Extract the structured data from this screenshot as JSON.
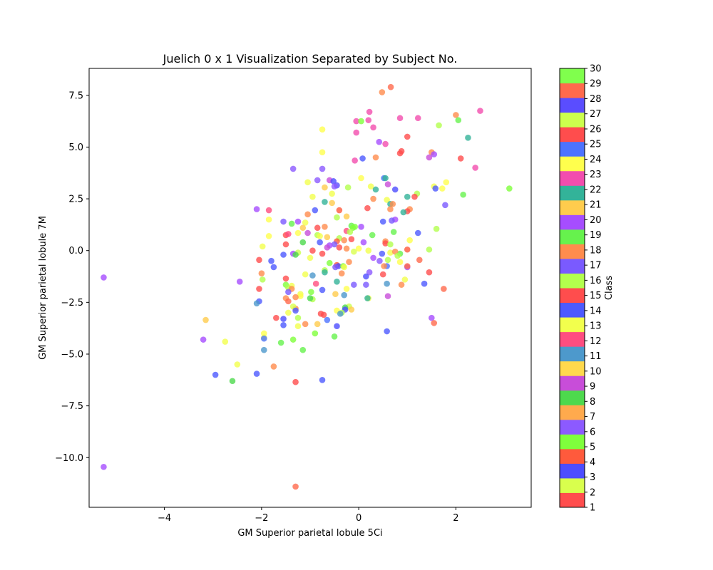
{
  "chart_data": {
    "type": "scatter",
    "title": "Juelich 0 x 1 Visualization Separated by Subject No.",
    "xlabel": "GM Superior parietal lobule 5Ci",
    "ylabel": "GM Superior parietal lobule 7M",
    "xlim": [
      -5.55,
      3.55
    ],
    "ylim": [
      -12.4,
      8.8
    ],
    "xticks": [
      -4,
      -2,
      0,
      2
    ],
    "xtick_labels": [
      "−4",
      "−2",
      "0",
      "2"
    ],
    "yticks": [
      -10.0,
      -7.5,
      -5.0,
      -2.5,
      0.0,
      2.5,
      5.0,
      7.5
    ],
    "ytick_labels": [
      "−10.0",
      "−7.5",
      "−5.0",
      "−2.5",
      "0.0",
      "2.5",
      "5.0",
      "7.5"
    ],
    "grid": false,
    "colorbar": {
      "label": "Class",
      "min": 1,
      "max": 30,
      "ticks": [
        "1",
        "2",
        "3",
        "4",
        "5",
        "6",
        "7",
        "8",
        "9",
        "10",
        "11",
        "12",
        "13",
        "14",
        "15",
        "16",
        "17",
        "18",
        "19",
        "20",
        "21",
        "22",
        "23",
        "24",
        "25",
        "26",
        "27",
        "28",
        "29",
        "30"
      ],
      "colors": [
        "#ff4d4d",
        "#d9ff4d",
        "#4d4dff",
        "#ff5a3c",
        "#7fff3c",
        "#8c5aff",
        "#ffaa4d",
        "#4dd94d",
        "#c84dd9",
        "#ffd94d",
        "#4d99cc",
        "#ff4d80",
        "#f2ff4d",
        "#4d5aff",
        "#ff4d4d",
        "#b3ff4d",
        "#7a5aff",
        "#ff8c4d",
        "#66f24d",
        "#a64dff",
        "#ffcc4d",
        "#33b399",
        "#f24dae",
        "#ffff4d",
        "#4d73ff",
        "#ff4d4d",
        "#ccff4d",
        "#5a4dff",
        "#ff6a4d",
        "#80ff4d"
      ]
    },
    "points": [
      {
        "x": 0.66,
        "y": 7.9,
        "c": 29
      },
      {
        "x": 0.48,
        "y": 7.65,
        "c": 18
      },
      {
        "x": 2.5,
        "y": 6.75,
        "c": 23
      },
      {
        "x": 0.22,
        "y": 6.7,
        "c": 23
      },
      {
        "x": 2.0,
        "y": 6.55,
        "c": 18
      },
      {
        "x": 0.85,
        "y": 6.4,
        "c": 23
      },
      {
        "x": 1.22,
        "y": 6.4,
        "c": 23
      },
      {
        "x": 2.05,
        "y": 6.3,
        "c": 19
      },
      {
        "x": -0.05,
        "y": 6.25,
        "c": 23
      },
      {
        "x": 0.05,
        "y": 6.25,
        "c": 5
      },
      {
        "x": 0.2,
        "y": 6.3,
        "c": 23
      },
      {
        "x": 1.65,
        "y": 6.05,
        "c": 16
      },
      {
        "x": 0.3,
        "y": 5.95,
        "c": 23
      },
      {
        "x": -0.75,
        "y": 5.85,
        "c": 24
      },
      {
        "x": -0.05,
        "y": 5.7,
        "c": 23
      },
      {
        "x": 1.0,
        "y": 5.5,
        "c": 15
      },
      {
        "x": 2.25,
        "y": 5.45,
        "c": 22
      },
      {
        "x": 0.42,
        "y": 5.25,
        "c": 20
      },
      {
        "x": 0.55,
        "y": 5.15,
        "c": 23
      },
      {
        "x": -0.75,
        "y": 4.75,
        "c": 24
      },
      {
        "x": 0.88,
        "y": 4.8,
        "c": 26
      },
      {
        "x": 0.85,
        "y": 4.7,
        "c": 26
      },
      {
        "x": 1.5,
        "y": 4.75,
        "c": 18
      },
      {
        "x": 1.55,
        "y": 4.65,
        "c": 20
      },
      {
        "x": 1.45,
        "y": 4.5,
        "c": 9
      },
      {
        "x": 0.35,
        "y": 4.5,
        "c": 18
      },
      {
        "x": 0.08,
        "y": 4.45,
        "c": 14
      },
      {
        "x": 2.1,
        "y": 4.45,
        "c": 15
      },
      {
        "x": -0.08,
        "y": 4.35,
        "c": 23
      },
      {
        "x": 2.4,
        "y": 4.0,
        "c": 23
      },
      {
        "x": -1.35,
        "y": 3.95,
        "c": 6
      },
      {
        "x": -0.75,
        "y": 3.95,
        "c": 6
      },
      {
        "x": 0.05,
        "y": 3.5,
        "c": 24
      },
      {
        "x": 0.52,
        "y": 3.5,
        "c": 25
      },
      {
        "x": 0.55,
        "y": 3.5,
        "c": 22
      },
      {
        "x": -0.85,
        "y": 3.4,
        "c": 6
      },
      {
        "x": -0.6,
        "y": 3.4,
        "c": 9
      },
      {
        "x": -0.52,
        "y": 3.35,
        "c": 3
      },
      {
        "x": -1.05,
        "y": 3.3,
        "c": 13
      },
      {
        "x": 1.8,
        "y": 3.3,
        "c": 24
      },
      {
        "x": 0.6,
        "y": 3.2,
        "c": 9
      },
      {
        "x": -0.45,
        "y": 3.15,
        "c": 28
      },
      {
        "x": -0.5,
        "y": 3.1,
        "c": 6
      },
      {
        "x": -0.7,
        "y": 3.05,
        "c": 21
      },
      {
        "x": -0.22,
        "y": 3.05,
        "c": 16
      },
      {
        "x": 1.55,
        "y": 3.1,
        "c": 13
      },
      {
        "x": 0.25,
        "y": 3.1,
        "c": 13
      },
      {
        "x": 1.72,
        "y": 3.0,
        "c": 24
      },
      {
        "x": 3.1,
        "y": 3.0,
        "c": 5
      },
      {
        "x": 0.35,
        "y": 2.95,
        "c": 22
      },
      {
        "x": 0.75,
        "y": 2.95,
        "c": 3
      },
      {
        "x": 1.58,
        "y": 3.0,
        "c": 14
      },
      {
        "x": -0.55,
        "y": 2.75,
        "c": 13
      },
      {
        "x": 1.2,
        "y": 2.75,
        "c": 16
      },
      {
        "x": 2.15,
        "y": 2.7,
        "c": 19
      },
      {
        "x": -0.95,
        "y": 2.6,
        "c": 13
      },
      {
        "x": 1.0,
        "y": 2.6,
        "c": 22
      },
      {
        "x": 1.15,
        "y": 2.6,
        "c": 26
      },
      {
        "x": 0.3,
        "y": 2.5,
        "c": 18
      },
      {
        "x": 0.58,
        "y": 2.45,
        "c": 13
      },
      {
        "x": -0.7,
        "y": 2.35,
        "c": 22
      },
      {
        "x": -0.55,
        "y": 2.3,
        "c": 21
      },
      {
        "x": 0.65,
        "y": 2.25,
        "c": 22
      },
      {
        "x": 0.7,
        "y": 2.25,
        "c": 18
      },
      {
        "x": 1.78,
        "y": 2.2,
        "c": 17
      },
      {
        "x": 0.18,
        "y": 2.05,
        "c": 15
      },
      {
        "x": -2.1,
        "y": 2.0,
        "c": 20
      },
      {
        "x": -0.4,
        "y": 1.95,
        "c": 4
      },
      {
        "x": 0.65,
        "y": 2.0,
        "c": 18
      },
      {
        "x": 1.05,
        "y": 2.0,
        "c": 18
      },
      {
        "x": -1.85,
        "y": 1.95,
        "c": 12
      },
      {
        "x": -0.9,
        "y": 1.95,
        "c": 14
      },
      {
        "x": 1.0,
        "y": 1.9,
        "c": 15
      },
      {
        "x": 0.92,
        "y": 1.85,
        "c": 22
      },
      {
        "x": -1.05,
        "y": 1.75,
        "c": 18
      },
      {
        "x": -0.25,
        "y": 1.65,
        "c": 21
      },
      {
        "x": -0.45,
        "y": 1.6,
        "c": 16
      },
      {
        "x": -1.85,
        "y": 1.5,
        "c": 24
      },
      {
        "x": 0.75,
        "y": 1.5,
        "c": 20
      },
      {
        "x": 0.5,
        "y": 1.4,
        "c": 14
      },
      {
        "x": 0.68,
        "y": 1.45,
        "c": 17
      },
      {
        "x": -1.55,
        "y": 1.4,
        "c": 17
      },
      {
        "x": -1.25,
        "y": 1.4,
        "c": 20
      },
      {
        "x": -1.1,
        "y": 1.35,
        "c": 13
      },
      {
        "x": -1.38,
        "y": 1.3,
        "c": 19
      },
      {
        "x": -0.15,
        "y": 1.2,
        "c": 19
      },
      {
        "x": -0.08,
        "y": 1.15,
        "c": 5
      },
      {
        "x": -0.12,
        "y": 1.1,
        "c": 5
      },
      {
        "x": -0.85,
        "y": 1.1,
        "c": 15
      },
      {
        "x": -0.7,
        "y": 1.15,
        "c": 18
      },
      {
        "x": -1.15,
        "y": 1.1,
        "c": 21
      },
      {
        "x": -0.25,
        "y": 0.95,
        "c": 12
      },
      {
        "x": -0.18,
        "y": 0.9,
        "c": 16
      },
      {
        "x": 0.05,
        "y": 1.15,
        "c": 20
      },
      {
        "x": -1.5,
        "y": 0.75,
        "c": 15
      },
      {
        "x": -1.45,
        "y": 0.8,
        "c": 12
      },
      {
        "x": -1.25,
        "y": 0.85,
        "c": 24
      },
      {
        "x": -1.05,
        "y": 0.85,
        "c": 9
      },
      {
        "x": -0.85,
        "y": 0.75,
        "c": 16
      },
      {
        "x": -0.8,
        "y": 0.7,
        "c": 13
      },
      {
        "x": -0.65,
        "y": 0.65,
        "c": 21
      },
      {
        "x": -1.85,
        "y": 0.7,
        "c": 24
      },
      {
        "x": -0.4,
        "y": 0.6,
        "c": 16
      },
      {
        "x": 0.28,
        "y": 0.75,
        "c": 19
      },
      {
        "x": 0.72,
        "y": 0.9,
        "c": 19
      },
      {
        "x": 1.22,
        "y": 0.85,
        "c": 14
      },
      {
        "x": 1.05,
        "y": 0.5,
        "c": 24
      },
      {
        "x": -0.3,
        "y": 0.5,
        "c": 18
      },
      {
        "x": -0.15,
        "y": 0.55,
        "c": 15
      },
      {
        "x": -0.45,
        "y": 0.45,
        "c": 4
      },
      {
        "x": 0.55,
        "y": 0.45,
        "c": 18
      },
      {
        "x": -0.8,
        "y": 0.4,
        "c": 14
      },
      {
        "x": -1.15,
        "y": 0.4,
        "c": 8
      },
      {
        "x": 0.1,
        "y": 0.4,
        "c": 20
      },
      {
        "x": 0.55,
        "y": 0.35,
        "c": 15
      },
      {
        "x": 0.65,
        "y": 0.3,
        "c": 16
      },
      {
        "x": -0.5,
        "y": 0.3,
        "c": 17
      },
      {
        "x": -0.6,
        "y": 0.25,
        "c": 20
      },
      {
        "x": -1.5,
        "y": 0.3,
        "c": 15
      },
      {
        "x": -1.98,
        "y": 0.2,
        "c": 13
      },
      {
        "x": -0.65,
        "y": 0.15,
        "c": 9
      },
      {
        "x": -0.4,
        "y": 0.15,
        "c": 15
      },
      {
        "x": -0.25,
        "y": 0.1,
        "c": 18
      },
      {
        "x": 0.0,
        "y": 0.1,
        "c": 24
      },
      {
        "x": 1.0,
        "y": 0.05,
        "c": 4
      },
      {
        "x": 1.45,
        "y": 0.05,
        "c": 16
      },
      {
        "x": 1.6,
        "y": 1.05,
        "c": 16
      },
      {
        "x": -0.95,
        "y": 0.0,
        "c": 26
      },
      {
        "x": -1.25,
        "y": -0.1,
        "c": 27
      },
      {
        "x": -1.35,
        "y": -0.15,
        "c": 20
      },
      {
        "x": -0.75,
        "y": -0.15,
        "c": 1
      },
      {
        "x": -0.1,
        "y": -0.05,
        "c": 2
      },
      {
        "x": 0.2,
        "y": 0.0,
        "c": 13
      },
      {
        "x": 0.48,
        "y": -0.15,
        "c": 14
      },
      {
        "x": 0.65,
        "y": -0.1,
        "c": 13
      },
      {
        "x": 0.85,
        "y": -0.15,
        "c": 19
      },
      {
        "x": 0.75,
        "y": -0.05,
        "c": 18
      },
      {
        "x": -1.55,
        "y": -0.2,
        "c": 14
      },
      {
        "x": -1.3,
        "y": -0.2,
        "c": 8
      },
      {
        "x": 0.8,
        "y": -0.25,
        "c": 16
      },
      {
        "x": 0.3,
        "y": -0.35,
        "c": 20
      },
      {
        "x": -1.0,
        "y": -0.35,
        "c": 13
      },
      {
        "x": -2.05,
        "y": -0.45,
        "c": 15
      },
      {
        "x": -1.8,
        "y": -0.5,
        "c": 14
      },
      {
        "x": 0.6,
        "y": -0.45,
        "c": 16
      },
      {
        "x": 0.43,
        "y": -0.5,
        "c": 6
      },
      {
        "x": 0.85,
        "y": -0.55,
        "c": 24
      },
      {
        "x": 1.25,
        "y": -0.45,
        "c": 29
      },
      {
        "x": -0.6,
        "y": -0.6,
        "c": 5
      },
      {
        "x": -0.2,
        "y": -0.55,
        "c": 18
      },
      {
        "x": -0.45,
        "y": -0.7,
        "c": 4
      },
      {
        "x": -0.42,
        "y": -0.75,
        "c": 3
      },
      {
        "x": 0.58,
        "y": -0.75,
        "c": 25
      },
      {
        "x": 0.52,
        "y": -0.75,
        "c": 18
      },
      {
        "x": -0.32,
        "y": -0.75,
        "c": 5
      },
      {
        "x": -0.3,
        "y": -0.8,
        "c": 13
      },
      {
        "x": 1.0,
        "y": -0.8,
        "c": 20
      },
      {
        "x": 1.0,
        "y": -0.75,
        "c": 29
      },
      {
        "x": -1.75,
        "y": -0.8,
        "c": 14
      },
      {
        "x": -0.48,
        "y": -0.8,
        "c": 17
      },
      {
        "x": -0.7,
        "y": -0.95,
        "c": 16
      },
      {
        "x": -0.7,
        "y": -1.05,
        "c": 22
      },
      {
        "x": 0.22,
        "y": -1.05,
        "c": 6
      },
      {
        "x": -0.35,
        "y": -1.1,
        "c": 18
      },
      {
        "x": -2.0,
        "y": -1.1,
        "c": 18
      },
      {
        "x": -1.1,
        "y": -1.15,
        "c": 13
      },
      {
        "x": 0.5,
        "y": -1.15,
        "c": 15
      },
      {
        "x": 0.15,
        "y": -1.25,
        "c": 3
      },
      {
        "x": -0.95,
        "y": -1.2,
        "c": 11
      },
      {
        "x": 1.45,
        "y": -1.05,
        "c": 15
      },
      {
        "x": -1.5,
        "y": -1.35,
        "c": 15
      },
      {
        "x": -1.98,
        "y": -1.4,
        "c": 16
      },
      {
        "x": 0.95,
        "y": -1.4,
        "c": 13
      },
      {
        "x": -0.45,
        "y": -1.5,
        "c": 22
      },
      {
        "x": -2.45,
        "y": -1.5,
        "c": 20
      },
      {
        "x": -5.25,
        "y": -1.3,
        "c": 20
      },
      {
        "x": 0.15,
        "y": -1.65,
        "c": 17
      },
      {
        "x": 0.58,
        "y": -1.6,
        "c": 11
      },
      {
        "x": 0.88,
        "y": -1.65,
        "c": 18
      },
      {
        "x": 1.35,
        "y": -1.6,
        "c": 14
      },
      {
        "x": -0.1,
        "y": -1.65,
        "c": 17
      },
      {
        "x": -1.5,
        "y": -1.65,
        "c": 5
      },
      {
        "x": -1.38,
        "y": -1.7,
        "c": 13
      },
      {
        "x": -0.88,
        "y": -1.6,
        "c": 12
      },
      {
        "x": -1.45,
        "y": -1.8,
        "c": 16
      },
      {
        "x": -1.38,
        "y": -1.85,
        "c": 18
      },
      {
        "x": -2.05,
        "y": -1.85,
        "c": 15
      },
      {
        "x": -0.75,
        "y": -1.9,
        "c": 14
      },
      {
        "x": -0.25,
        "y": -1.85,
        "c": 24
      },
      {
        "x": 1.75,
        "y": -1.85,
        "c": 29
      },
      {
        "x": -1.45,
        "y": -2.0,
        "c": 17
      },
      {
        "x": -0.98,
        "y": -2.0,
        "c": 5
      },
      {
        "x": -1.2,
        "y": -2.1,
        "c": 13
      },
      {
        "x": -0.48,
        "y": -2.1,
        "c": 21
      },
      {
        "x": -0.3,
        "y": -2.15,
        "c": 11
      },
      {
        "x": 0.6,
        "y": -2.2,
        "c": 9
      },
      {
        "x": -1.2,
        "y": -2.2,
        "c": 24
      },
      {
        "x": -1.3,
        "y": -2.25,
        "c": 18
      },
      {
        "x": 0.2,
        "y": -2.3,
        "c": 13
      },
      {
        "x": 0.18,
        "y": -2.3,
        "c": 22
      },
      {
        "x": -1.5,
        "y": -2.3,
        "c": 18
      },
      {
        "x": -0.95,
        "y": -2.35,
        "c": 16
      },
      {
        "x": -1.0,
        "y": -2.3,
        "c": 8
      },
      {
        "x": -2.05,
        "y": -2.45,
        "c": 14
      },
      {
        "x": -1.45,
        "y": -2.45,
        "c": 29
      },
      {
        "x": -2.1,
        "y": -2.55,
        "c": 11
      },
      {
        "x": -1.3,
        "y": -2.8,
        "c": 18
      },
      {
        "x": -1.35,
        "y": -2.7,
        "c": 2
      },
      {
        "x": -0.2,
        "y": -2.7,
        "c": 27
      },
      {
        "x": -0.28,
        "y": -2.75,
        "c": 8
      },
      {
        "x": -0.28,
        "y": -2.85,
        "c": 3
      },
      {
        "x": -0.45,
        "y": -2.9,
        "c": 24
      },
      {
        "x": -0.15,
        "y": -2.85,
        "c": 21
      },
      {
        "x": -0.35,
        "y": -3.0,
        "c": 16
      },
      {
        "x": -1.3,
        "y": -2.9,
        "c": 14
      },
      {
        "x": -1.45,
        "y": -3.0,
        "c": 13
      },
      {
        "x": -0.38,
        "y": -3.05,
        "c": 11
      },
      {
        "x": -0.78,
        "y": -3.05,
        "c": 26
      },
      {
        "x": -0.72,
        "y": -3.1,
        "c": 15
      },
      {
        "x": -1.25,
        "y": -3.25,
        "c": 16
      },
      {
        "x": -1.7,
        "y": -3.25,
        "c": 15
      },
      {
        "x": -1.55,
        "y": -3.3,
        "c": 3
      },
      {
        "x": -3.15,
        "y": -3.35,
        "c": 21
      },
      {
        "x": -0.65,
        "y": -3.35,
        "c": 25
      },
      {
        "x": 1.5,
        "y": -3.25,
        "c": 20
      },
      {
        "x": 1.55,
        "y": -3.5,
        "c": 29
      },
      {
        "x": -1.1,
        "y": -3.55,
        "c": 18
      },
      {
        "x": -1.55,
        "y": -3.6,
        "c": 14
      },
      {
        "x": -1.25,
        "y": -3.65,
        "c": 13
      },
      {
        "x": -0.85,
        "y": -3.55,
        "c": 21
      },
      {
        "x": -0.45,
        "y": -3.65,
        "c": 3
      },
      {
        "x": 0.58,
        "y": -3.9,
        "c": 14
      },
      {
        "x": -1.95,
        "y": -4.0,
        "c": 24
      },
      {
        "x": -0.9,
        "y": -4.0,
        "c": 5
      },
      {
        "x": -0.5,
        "y": -4.15,
        "c": 19
      },
      {
        "x": -1.95,
        "y": -4.2,
        "c": 13
      },
      {
        "x": -1.95,
        "y": -4.25,
        "c": 25
      },
      {
        "x": -3.2,
        "y": -4.3,
        "c": 20
      },
      {
        "x": -1.35,
        "y": -4.3,
        "c": 5
      },
      {
        "x": -2.75,
        "y": -4.4,
        "c": 13
      },
      {
        "x": -1.6,
        "y": -4.45,
        "c": 19
      },
      {
        "x": -1.95,
        "y": -4.8,
        "c": 11
      },
      {
        "x": -1.15,
        "y": -4.8,
        "c": 19
      },
      {
        "x": -2.5,
        "y": -5.5,
        "c": 13
      },
      {
        "x": -1.75,
        "y": -5.6,
        "c": 18
      },
      {
        "x": -2.95,
        "y": -6.0,
        "c": 14
      },
      {
        "x": -2.1,
        "y": -5.95,
        "c": 14
      },
      {
        "x": -0.75,
        "y": -6.25,
        "c": 14
      },
      {
        "x": -2.6,
        "y": -6.3,
        "c": 8
      },
      {
        "x": -1.3,
        "y": -6.35,
        "c": 15
      },
      {
        "x": -5.25,
        "y": -10.45,
        "c": 20
      },
      {
        "x": -1.3,
        "y": -11.4,
        "c": 29
      }
    ]
  }
}
